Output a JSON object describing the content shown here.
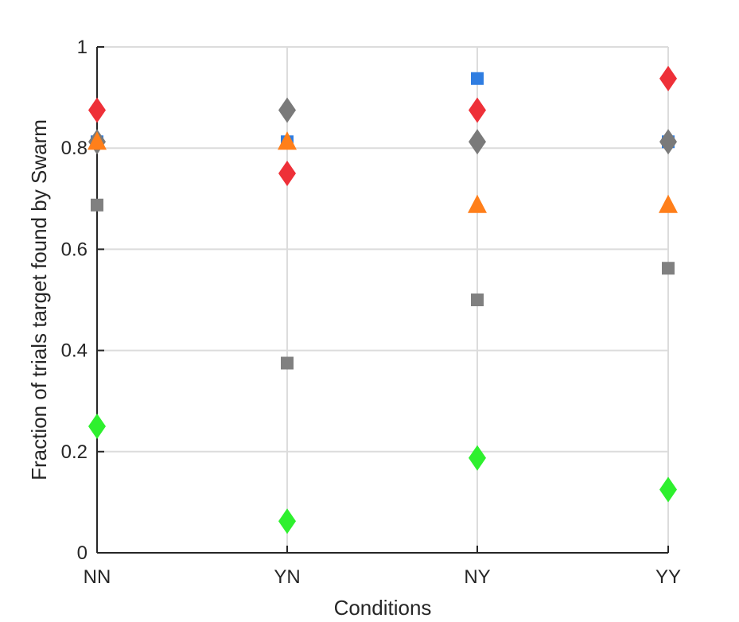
{
  "chart_data": {
    "type": "scatter",
    "xlabel": "Conditions",
    "ylabel": "Fraction of trials target found by Swarm",
    "categories": [
      "NN",
      "YN",
      "NY",
      "YY"
    ],
    "ylim": [
      0,
      1
    ],
    "yticks": [
      0,
      0.2,
      0.4,
      0.6,
      0.8,
      1
    ],
    "ytick_labels": [
      "0",
      "0.2",
      "0.4",
      "0.6",
      "0.8",
      "1"
    ],
    "grid": true,
    "series": [
      {
        "marker": "square",
        "color": "#2f7de1",
        "values": [
          0.8125,
          0.8125,
          0.9375,
          0.8125
        ]
      },
      {
        "marker": "diamond",
        "color": "#ee3038",
        "values": [
          0.875,
          0.75,
          0.875,
          0.9375
        ]
      },
      {
        "marker": "diamond",
        "color": "#7a7a7a",
        "values": [
          0.8125,
          0.875,
          0.8125,
          0.8125
        ]
      },
      {
        "marker": "triangle",
        "color": "#ff7f1a",
        "values": [
          0.8125,
          0.8125,
          0.6875,
          0.6875
        ]
      },
      {
        "marker": "square",
        "color": "#808080",
        "values": [
          0.6875,
          0.375,
          0.5,
          0.5625
        ]
      },
      {
        "marker": "diamond",
        "color": "#2ef02e",
        "values": [
          0.25,
          0.0625,
          0.1875,
          0.125
        ]
      }
    ]
  }
}
